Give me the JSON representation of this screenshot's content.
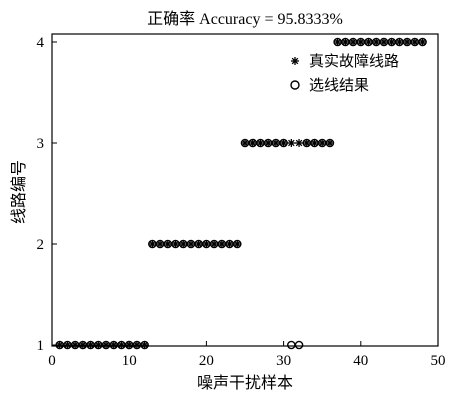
{
  "chart_data": {
    "type": "scatter",
    "title": "正确率 Accuracy = 95.8333%",
    "xlabel": "噪声干扰样本",
    "ylabel": "线路编号",
    "xlim": [
      0,
      50
    ],
    "ylim": [
      1,
      4
    ],
    "xticks": [
      0,
      10,
      20,
      30,
      40,
      50
    ],
    "yticks": [
      1,
      2,
      3,
      4
    ],
    "grid": false,
    "legend_position": "top-right",
    "series": [
      {
        "name": "真实故障线路",
        "marker": "asterisk",
        "x": [
          1,
          2,
          3,
          4,
          5,
          6,
          7,
          8,
          9,
          10,
          11,
          12,
          13,
          14,
          15,
          16,
          17,
          18,
          19,
          20,
          21,
          22,
          23,
          24,
          25,
          26,
          27,
          28,
          29,
          30,
          31,
          32,
          33,
          34,
          35,
          36,
          37,
          38,
          39,
          40,
          41,
          42,
          43,
          44,
          45,
          46,
          47,
          48
        ],
        "y": [
          1,
          1,
          1,
          1,
          1,
          1,
          1,
          1,
          1,
          1,
          1,
          1,
          2,
          2,
          2,
          2,
          2,
          2,
          2,
          2,
          2,
          2,
          2,
          2,
          3,
          3,
          3,
          3,
          3,
          3,
          3,
          3,
          3,
          3,
          3,
          3,
          4,
          4,
          4,
          4,
          4,
          4,
          4,
          4,
          4,
          4,
          4,
          4
        ]
      },
      {
        "name": "选线结果",
        "marker": "circle",
        "x": [
          1,
          2,
          3,
          4,
          5,
          6,
          7,
          8,
          9,
          10,
          11,
          12,
          13,
          14,
          15,
          16,
          17,
          18,
          19,
          20,
          21,
          22,
          23,
          24,
          25,
          26,
          27,
          28,
          29,
          30,
          31,
          32,
          33,
          34,
          35,
          36,
          37,
          38,
          39,
          40,
          41,
          42,
          43,
          44,
          45,
          46,
          47,
          48
        ],
        "y": [
          1,
          1,
          1,
          1,
          1,
          1,
          1,
          1,
          1,
          1,
          1,
          1,
          2,
          2,
          2,
          2,
          2,
          2,
          2,
          2,
          2,
          2,
          2,
          2,
          3,
          3,
          3,
          3,
          3,
          3,
          1,
          1,
          3,
          3,
          3,
          3,
          4,
          4,
          4,
          4,
          4,
          4,
          4,
          4,
          4,
          4,
          4,
          4
        ]
      }
    ]
  }
}
